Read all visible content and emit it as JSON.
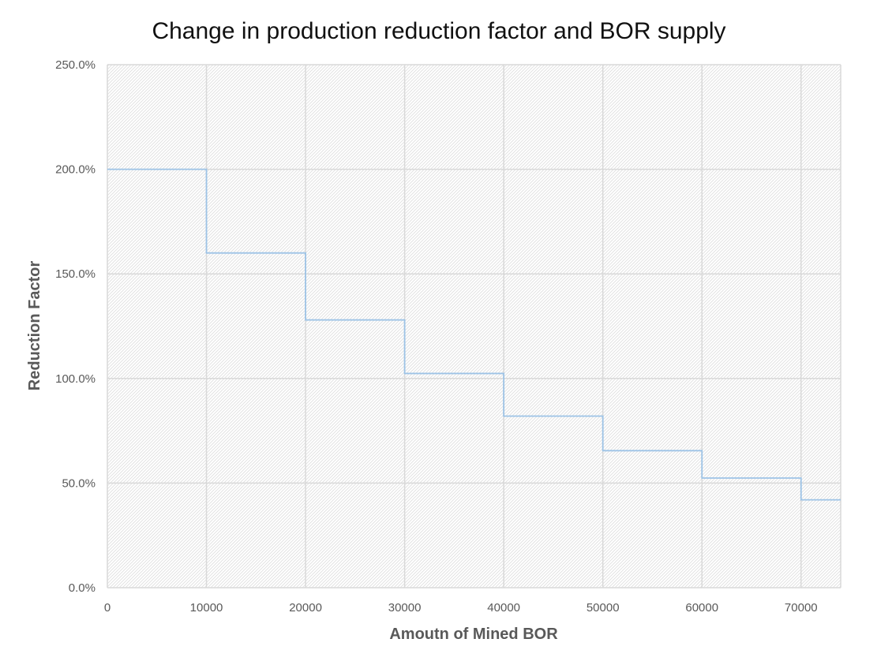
{
  "chart_data": {
    "type": "line",
    "step": true,
    "title": "Change in production reduction factor and BOR supply",
    "xlabel": "Amoutn of Mined BOR",
    "ylabel": "Reduction Factor",
    "xlim": [
      0,
      74000
    ],
    "ylim": [
      0,
      2.5
    ],
    "x_ticks": [
      0,
      10000,
      20000,
      30000,
      40000,
      50000,
      60000,
      70000
    ],
    "x_tick_labels": [
      "0",
      "10000",
      "20000",
      "30000",
      "40000",
      "50000",
      "60000",
      "70000"
    ],
    "y_ticks": [
      0,
      0.5,
      1.0,
      1.5,
      2.0,
      2.5
    ],
    "y_tick_labels": [
      "0.0%",
      "50.0%",
      "100.0%",
      "150.0%",
      "200.0%",
      "250.0%"
    ],
    "grid": true,
    "series": [
      {
        "color": "#9dc3e6",
        "points": [
          {
            "x": 0,
            "y": 2.0
          },
          {
            "x": 10000,
            "y": 1.6
          },
          {
            "x": 20000,
            "y": 1.28
          },
          {
            "x": 30000,
            "y": 1.024
          },
          {
            "x": 40000,
            "y": 0.82
          },
          {
            "x": 50000,
            "y": 0.655
          },
          {
            "x": 60000,
            "y": 0.524
          },
          {
            "x": 70000,
            "y": 0.42
          }
        ]
      }
    ],
    "colors": {
      "grid": "#d9d9d9",
      "hatch": "#e3e3e3",
      "line": "#9dc3e6"
    }
  }
}
